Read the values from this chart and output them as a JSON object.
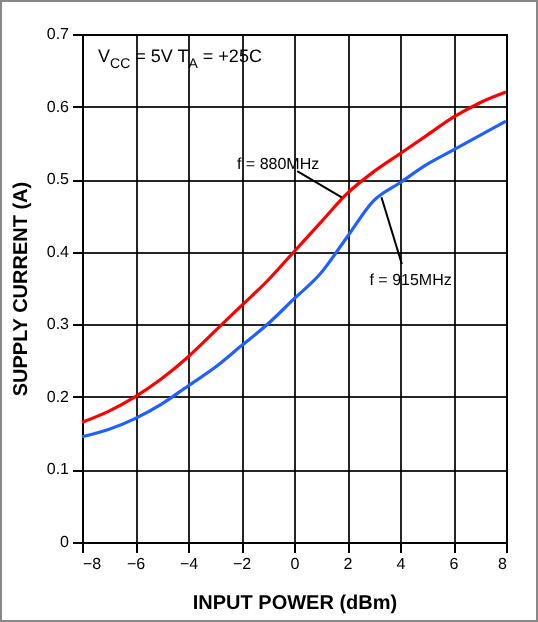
{
  "chart_data": {
    "type": "line",
    "xlabel": "INPUT POWER (dBm)",
    "ylabel": "SUPPLY CURRENT (A)",
    "x": [
      -8,
      -7,
      -6,
      -5,
      -4,
      -3,
      -2,
      -1,
      0,
      1,
      2,
      3,
      4,
      5,
      6,
      7,
      8
    ],
    "series": [
      {
        "color": "#ff0000",
        "values": [
          0.165,
          0.18,
          0.2,
          0.225,
          0.255,
          0.29,
          0.325,
          0.36,
          0.4,
          0.44,
          0.48,
          0.51,
          0.535,
          0.56,
          0.585,
          0.605,
          0.62
        ]
      },
      {
        "color": "#2060ff",
        "values": [
          0.145,
          0.155,
          0.17,
          0.19,
          0.215,
          0.24,
          0.27,
          0.3,
          0.335,
          0.37,
          0.42,
          0.47,
          0.495,
          0.52,
          0.54,
          0.56,
          0.58
        ]
      }
    ],
    "xlim": [
      -8,
      8
    ],
    "xticks": [
      -8,
      -6,
      -4,
      -2,
      0,
      2,
      4,
      6,
      8
    ],
    "ylim": [
      0,
      0.7
    ],
    "yticks": [
      0,
      0.1,
      0.2,
      0.3,
      0.4,
      0.5,
      0.6,
      0.7
    ],
    "grid": true,
    "marker": "none",
    "line_style": "solid",
    "annotations": [
      "V$_{CC}$ = 5V T$_{A}$ = +25C",
      {
        "text": "f = 880MHz",
        "x": 1.8,
        "y": 0.475
      },
      {
        "text": "f = 915MHz",
        "x": 3.3,
        "y": 0.475
      }
    ]
  }
}
